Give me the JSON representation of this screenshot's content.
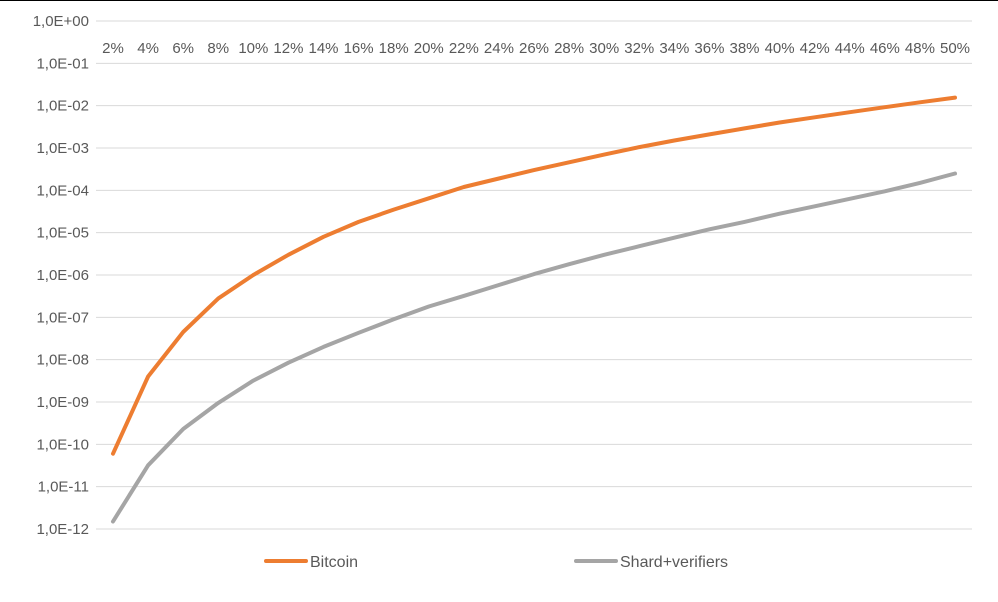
{
  "chart_data": {
    "type": "line",
    "title": "",
    "xlabel": "",
    "ylabel": "",
    "y_scale": "log",
    "ylim": [
      1e-12,
      1
    ],
    "y_tick_labels": [
      "1,0E+00",
      "1,0E-01",
      "1,0E-02",
      "1,0E-03",
      "1,0E-04",
      "1,0E-05",
      "1,0E-06",
      "1,0E-07",
      "1,0E-08",
      "1,0E-09",
      "1,0E-10",
      "1,0E-11",
      "1,0E-12"
    ],
    "categories": [
      "2%",
      "4%",
      "6%",
      "8%",
      "10%",
      "12%",
      "14%",
      "16%",
      "18%",
      "20%",
      "22%",
      "24%",
      "26%",
      "28%",
      "30%",
      "32%",
      "34%",
      "36%",
      "38%",
      "40%",
      "42%",
      "44%",
      "46%",
      "48%",
      "50%"
    ],
    "x_axis_position": "top",
    "grid": true,
    "legend_position": "bottom",
    "series": [
      {
        "name": "Bitcoin",
        "color": "#ED7D31",
        "values": [
          6e-11,
          4e-09,
          4.5e-08,
          2.8e-07,
          1e-06,
          3e-06,
          8e-06,
          1.8e-05,
          3.5e-05,
          6.5e-05,
          0.00012,
          0.00019,
          0.0003,
          0.00046,
          0.0007,
          0.00105,
          0.0015,
          0.0021,
          0.0029,
          0.004,
          0.0053,
          0.007,
          0.0092,
          0.012,
          0.0155
        ]
      },
      {
        "name": "Shard+verifiers",
        "color": "#A5A5A5",
        "values": [
          1.5e-12,
          3.2e-11,
          2.3e-10,
          9.5e-10,
          3.2e-09,
          8.5e-09,
          2e-08,
          4.3e-08,
          9e-08,
          1.8e-07,
          3.2e-07,
          5.8e-07,
          1.05e-06,
          1.8e-06,
          3e-06,
          4.8e-06,
          7.6e-06,
          1.2e-05,
          1.8e-05,
          2.8e-05,
          4.2e-05,
          6.3e-05,
          9.5e-05,
          0.00015,
          0.00025
        ]
      }
    ]
  }
}
